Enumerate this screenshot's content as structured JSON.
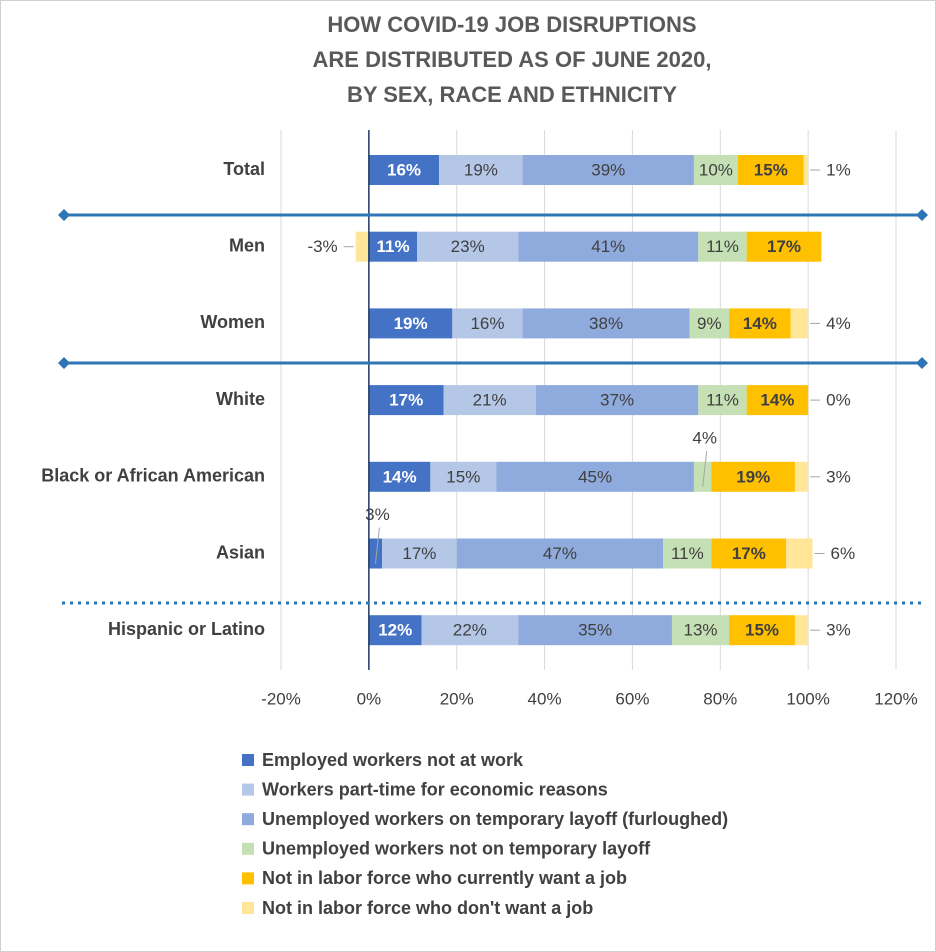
{
  "chart_data": {
    "type": "stacked-bar-horizontal",
    "title": [
      "HOW COVID-19 JOB DISRUPTIONS",
      "ARE DISTRIBUTED AS OF JUNE 2020,",
      "BY SEX, RACE AND ETHNICITY"
    ],
    "categories": [
      "Total",
      "Men",
      "Women",
      "White",
      "Black or African American",
      "Asian",
      "Hispanic or Latino"
    ],
    "series": [
      {
        "name": "Employed workers not at work",
        "color": "#4472c4",
        "values": [
          16,
          11,
          19,
          17,
          14,
          3,
          12
        ],
        "value_labels": [
          "16%",
          "11%",
          "19%",
          "17%",
          "14%",
          "3%",
          "12%"
        ]
      },
      {
        "name": "Workers part-time for economic reasons",
        "color": "#b4c7e7",
        "values": [
          19,
          23,
          16,
          21,
          15,
          17,
          22
        ],
        "value_labels": [
          "19%",
          "23%",
          "16%",
          "21%",
          "15%",
          "17%",
          "22%"
        ]
      },
      {
        "name": "Unemployed workers on temporary layoff (furloughed)",
        "color": "#8faadc",
        "values": [
          39,
          41,
          38,
          37,
          45,
          47,
          35
        ],
        "value_labels": [
          "39%",
          "41%",
          "38%",
          "37%",
          "45%",
          "47%",
          "35%"
        ]
      },
      {
        "name": "Unemployed workers not on temporary layoff",
        "color": "#c5e0b4",
        "values": [
          10,
          11,
          9,
          11,
          4,
          11,
          13
        ],
        "value_labels": [
          "10%",
          "11%",
          "9%",
          "11%",
          "4%",
          "11%",
          "13%"
        ]
      },
      {
        "name": "Not in labor force who currently want a job",
        "color": "#ffc000",
        "values": [
          15,
          17,
          14,
          14,
          19,
          17,
          15
        ],
        "value_labels": [
          "15%",
          "17%",
          "14%",
          "14%",
          "19%",
          "17%",
          "15%"
        ]
      },
      {
        "name": "Not in labor force who don't want a job",
        "color": "#ffe699",
        "values": [
          1,
          -3,
          4,
          0,
          3,
          6,
          3
        ],
        "value_labels": [
          "1%",
          "-3%",
          "4%",
          "0%",
          "3%",
          "6%",
          "3%"
        ]
      }
    ],
    "xlim": [
      -20,
      120
    ],
    "xticks": [
      {
        "value": -20,
        "label": "-20%"
      },
      {
        "value": 0,
        "label": "0%"
      },
      {
        "value": 20,
        "label": "20%"
      },
      {
        "value": 40,
        "label": "40%"
      },
      {
        "value": 60,
        "label": "60%"
      },
      {
        "value": 80,
        "label": "80%"
      },
      {
        "value": 100,
        "label": "100%"
      },
      {
        "value": 120,
        "label": "120%"
      }
    ],
    "grid": true
  }
}
